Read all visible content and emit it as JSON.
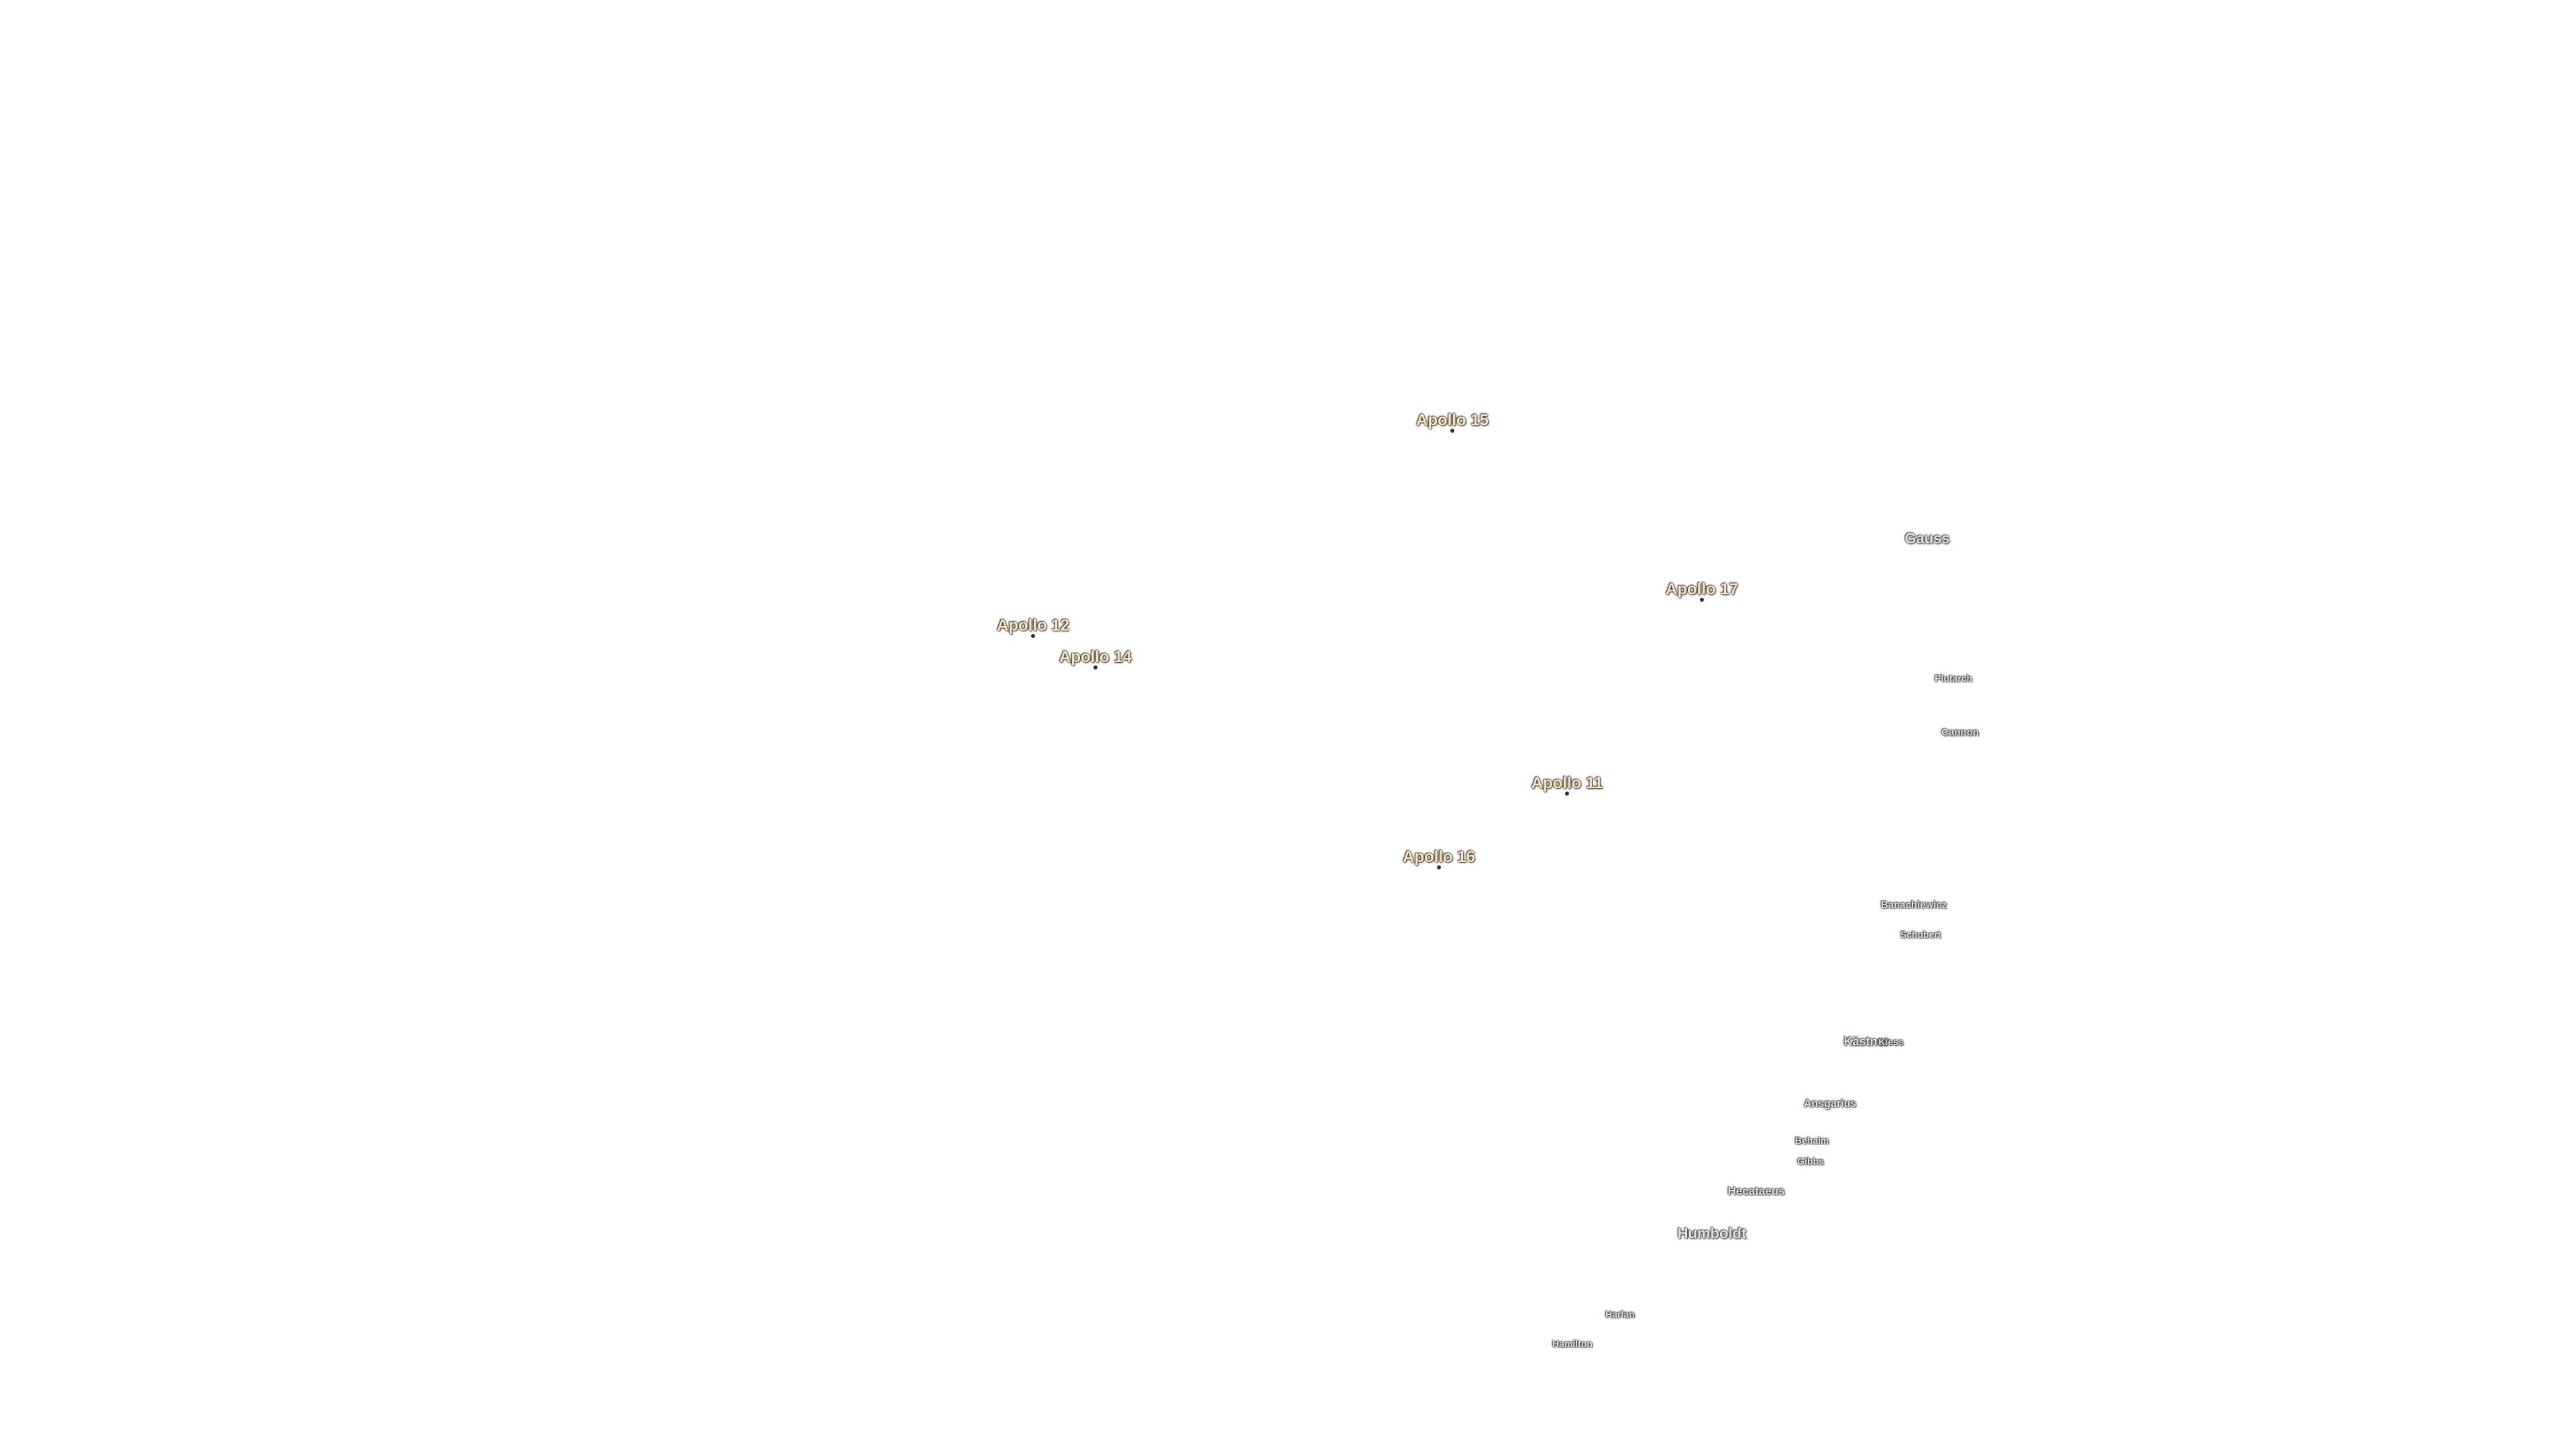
{
  "labels": [
    {
      "text": "Apollo 15"
    },
    {
      "text": "Gauss"
    },
    {
      "text": "Apollo 17"
    },
    {
      "text": "Apollo 12"
    },
    {
      "text": "Apollo 14"
    },
    {
      "text": "Plutarch"
    },
    {
      "text": "Cannon"
    },
    {
      "text": "Apollo 11"
    },
    {
      "text": "Apollo 16"
    },
    {
      "text": "Banachiewicz"
    },
    {
      "text": "Schubert"
    },
    {
      "text": "Kästner"
    },
    {
      "text": "Kiess"
    },
    {
      "text": "Ansgarius"
    },
    {
      "text": "Behaim"
    },
    {
      "text": "Gibbs"
    },
    {
      "text": "Hecataeus"
    },
    {
      "text": "Humboldt"
    },
    {
      "text": "Harlan"
    },
    {
      "text": "Hamilton"
    }
  ]
}
